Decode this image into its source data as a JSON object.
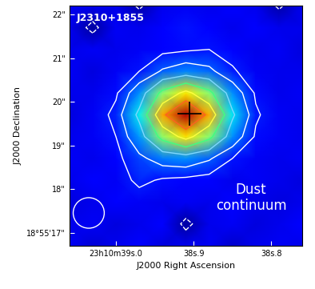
{
  "chart_data": {
    "type": "heatmap",
    "title": "J2310+1855",
    "annotation": [
      "Dust",
      "continuum"
    ],
    "x_label": "J2000 Right Ascension",
    "y_label": "J2000 Declination",
    "x": [
      39.06,
      39.03,
      39.0,
      38.97,
      38.94,
      38.91,
      38.88,
      38.85,
      38.82,
      38.79,
      38.76
    ],
    "y": [
      16.7,
      17.2,
      17.7,
      18.2,
      18.7,
      19.2,
      19.7,
      20.2,
      20.7,
      21.2,
      21.7,
      22.2
    ],
    "cells": [
      [
        0.1,
        -0.2,
        0.0,
        0.2,
        -0.1,
        0.0,
        0.1,
        -0.3,
        0.0,
        0.1,
        0.0
      ],
      [
        0.0,
        0.1,
        -0.1,
        0.0,
        0.2,
        -0.7,
        0.0,
        0.1,
        -0.1,
        0.0,
        0.2
      ],
      [
        -0.1,
        0.0,
        0.2,
        0.1,
        0.0,
        0.1,
        0.0,
        0.2,
        0.0,
        -0.1,
        0.0
      ],
      [
        0.0,
        0.2,
        0.1,
        0.7,
        0.4,
        0.3,
        0.2,
        0.0,
        0.1,
        0.0,
        -0.1
      ],
      [
        0.1,
        0.0,
        0.3,
        1.0,
        1.6,
        1.8,
        1.3,
        0.5,
        0.1,
        0.0,
        0.1
      ],
      [
        0.0,
        0.1,
        0.5,
        1.9,
        4.5,
        6.0,
        4.4,
        1.8,
        0.4,
        0.1,
        0.0
      ],
      [
        -0.1,
        0.1,
        0.7,
        2.8,
        6.7,
        9.0,
        6.6,
        2.7,
        0.6,
        0.1,
        0.0
      ],
      [
        0.0,
        0.0,
        0.4,
        1.8,
        4.4,
        5.9,
        4.4,
        1.8,
        0.4,
        0.0,
        0.1
      ],
      [
        0.1,
        -0.1,
        0.1,
        0.5,
        1.3,
        1.7,
        1.4,
        0.6,
        0.1,
        0.0,
        0.0
      ],
      [
        0.0,
        0.1,
        0.0,
        0.1,
        0.3,
        0.4,
        0.5,
        0.2,
        0.0,
        0.1,
        -0.1
      ],
      [
        0.0,
        -0.7,
        0.1,
        0.0,
        0.3,
        0.5,
        0.2,
        0.0,
        0.2,
        0.0,
        0.0
      ],
      [
        0.1,
        0.0,
        0.0,
        -0.6,
        0.0,
        0.1,
        0.0,
        0.2,
        0.0,
        -0.6,
        0.0
      ]
    ],
    "zlim": [
      -1.0,
      9.5
    ],
    "contour_levels": [
      -0.5,
      0.5,
      1.2,
      2.5,
      4.0,
      5.5,
      7.0
    ],
    "cross": [
      38.905,
      19.72
    ],
    "beam": {
      "x": 39.035,
      "y": 17.45,
      "width": 0.04,
      "height": 0.7
    },
    "xlim": [
      39.06,
      38.76
    ],
    "ylim": [
      16.7,
      22.2
    ],
    "xticks": [
      {
        "value": 39.0,
        "label": "23h10m39s.0"
      },
      {
        "value": 38.9,
        "label": "38s.9"
      },
      {
        "value": 38.8,
        "label": "38s.8"
      }
    ],
    "yticks": [
      {
        "value": 17,
        "label": "18°55'17\""
      },
      {
        "value": 18,
        "label": "18\""
      },
      {
        "value": 19,
        "label": "19\""
      },
      {
        "value": 20,
        "label": "20\""
      },
      {
        "value": 21,
        "label": "21\""
      },
      {
        "value": 22,
        "label": "22\""
      }
    ]
  }
}
